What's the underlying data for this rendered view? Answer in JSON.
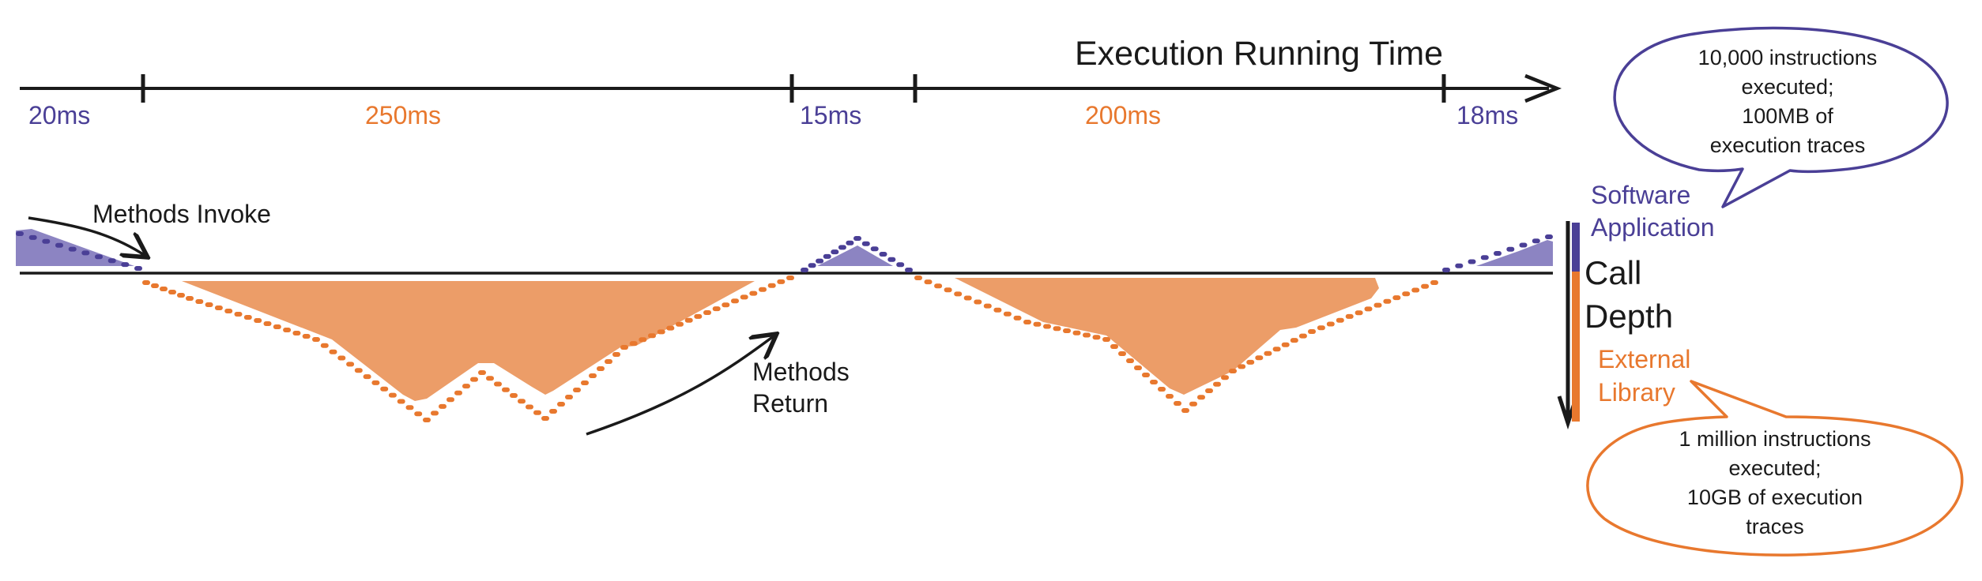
{
  "title": "Execution Running Time",
  "segments": [
    {
      "label": "20ms",
      "kind": "app"
    },
    {
      "label": "250ms",
      "kind": "lib"
    },
    {
      "label": "15ms",
      "kind": "app"
    },
    {
      "label": "200ms",
      "kind": "lib"
    },
    {
      "label": "18ms",
      "kind": "app"
    }
  ],
  "annotations": {
    "invoke": "Methods Invoke",
    "return_line1": "Methods",
    "return_line2": "Return"
  },
  "legend": {
    "app_line1": "Software",
    "app_line2": "Application",
    "call": "Call",
    "depth": "Depth",
    "lib_line1": "External",
    "lib_line2": "Library"
  },
  "bubbles": {
    "app": [
      "10,000 instructions",
      "executed;",
      "100MB of",
      "execution traces"
    ],
    "lib": [
      "1 million instructions",
      "executed;",
      "10GB of execution",
      "traces"
    ]
  },
  "colors": {
    "app": "#4a3f96",
    "app_fill": "#8c84c2",
    "lib": "#e8782e",
    "lib_fill": "#ec9d68",
    "ink": "#1a1a1a"
  }
}
